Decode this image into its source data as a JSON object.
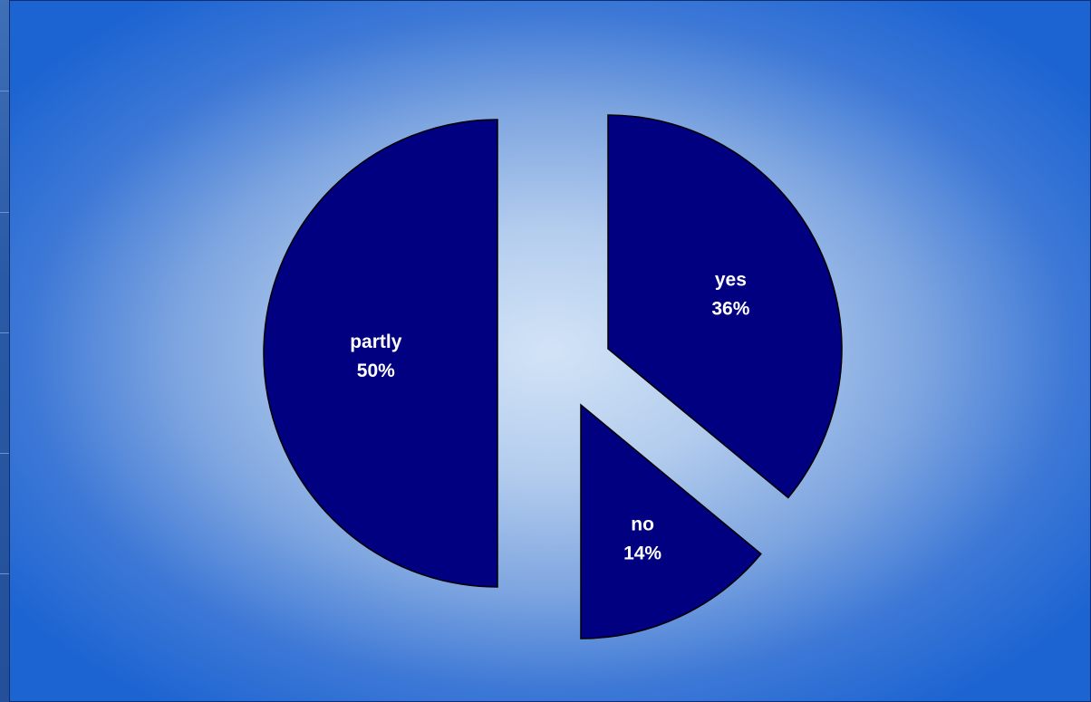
{
  "chart_data": {
    "type": "pie",
    "title": "",
    "slices": [
      {
        "label": "yes",
        "value": 36,
        "value_text": "36%"
      },
      {
        "label": "no",
        "value": 14,
        "value_text": "14%"
      },
      {
        "label": "partly",
        "value": 50,
        "value_text": "50%"
      }
    ],
    "start_angle_deg": 0,
    "direction": "clockwise",
    "exploded": true,
    "legend": "none",
    "slice_color": "#000080",
    "slice_stroke": "#000000",
    "label_color": "#ffffff"
  }
}
